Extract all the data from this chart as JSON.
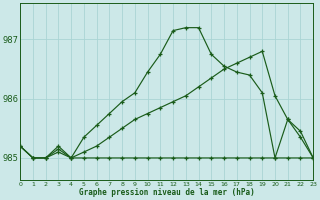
{
  "title": "Graphe pression niveau de la mer (hPa)",
  "background_color": "#cce8e8",
  "grid_color": "#aad4d4",
  "line_color": "#1a5c1a",
  "xlim": [
    0,
    23
  ],
  "ylim": [
    984.62,
    987.62
  ],
  "yticks": [
    985,
    986,
    987
  ],
  "xticks": [
    0,
    1,
    2,
    3,
    4,
    5,
    6,
    7,
    8,
    9,
    10,
    11,
    12,
    13,
    14,
    15,
    16,
    17,
    18,
    19,
    20,
    21,
    22,
    23
  ],
  "series1_x": [
    0,
    1,
    2,
    3,
    4,
    5,
    6,
    7,
    8,
    9,
    10,
    11,
    12,
    13,
    14,
    15,
    16,
    17,
    18,
    19,
    20,
    21,
    22,
    23
  ],
  "series1_y": [
    985.2,
    985.0,
    985.0,
    985.2,
    985.0,
    985.35,
    985.55,
    985.75,
    985.95,
    986.1,
    986.45,
    986.75,
    987.15,
    987.2,
    987.2,
    986.75,
    986.55,
    986.45,
    986.4,
    986.1,
    985.0,
    985.65,
    985.45,
    985.0
  ],
  "series2_x": [
    0,
    1,
    2,
    3,
    4,
    5,
    6,
    7,
    8,
    9,
    10,
    11,
    12,
    13,
    14,
    15,
    16,
    17,
    18,
    19,
    20,
    21,
    22,
    23
  ],
  "series2_y": [
    985.2,
    985.0,
    985.0,
    985.15,
    985.0,
    985.1,
    985.2,
    985.35,
    985.5,
    985.65,
    985.75,
    985.85,
    985.95,
    986.05,
    986.2,
    986.35,
    986.5,
    986.6,
    986.7,
    986.8,
    986.05,
    985.65,
    985.35,
    985.0
  ],
  "series3_x": [
    0,
    1,
    2,
    3,
    4,
    5,
    6,
    7,
    8,
    9,
    10,
    11,
    12,
    13,
    14,
    15,
    16,
    17,
    18,
    19,
    20,
    21,
    22,
    23
  ],
  "series3_y": [
    985.2,
    985.0,
    985.0,
    985.1,
    985.0,
    985.0,
    985.0,
    985.0,
    985.0,
    985.0,
    985.0,
    985.0,
    985.0,
    985.0,
    985.0,
    985.0,
    985.0,
    985.0,
    985.0,
    985.0,
    985.0,
    985.0,
    985.0,
    985.0
  ]
}
